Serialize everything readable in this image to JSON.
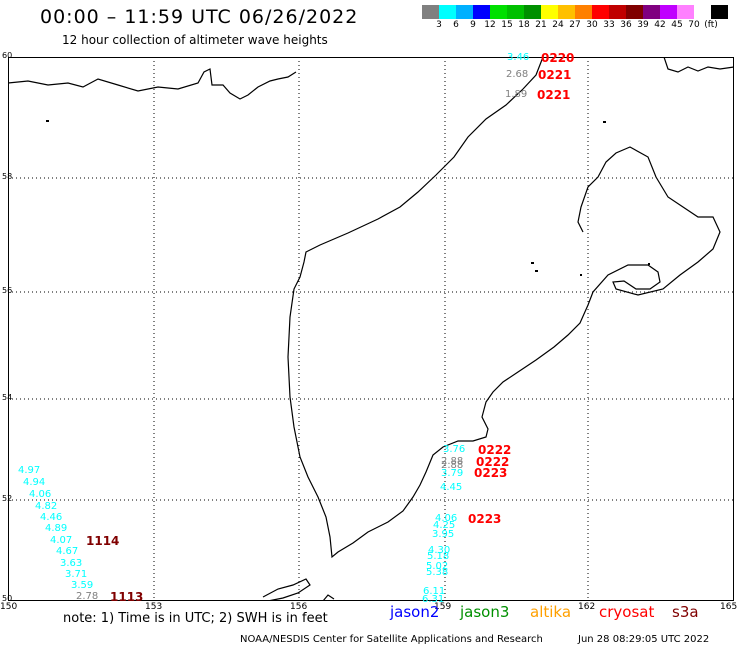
{
  "header": {
    "title": "00:00 – 11:59 UTC 06/26/2022",
    "subtitle": "12 hour collection of altimeter wave heights"
  },
  "color_scale": {
    "colors": [
      "#808080",
      "#00ffff",
      "#00b0ff",
      "#0000ff",
      "#00e000",
      "#00c000",
      "#009000",
      "#ffff00",
      "#ffc000",
      "#ff8000",
      "#ff0000",
      "#c00000",
      "#800000",
      "#800080",
      "#c000ff",
      "#ff80ff",
      "#ffffff",
      "#000000"
    ],
    "labels": [
      "3",
      "6",
      "9",
      "12",
      "15",
      "18",
      "21",
      "24",
      "27",
      "30",
      "33",
      "36",
      "39",
      "42",
      "45",
      "70"
    ],
    "unit": "(ft)"
  },
  "map": {
    "lat_labels": [
      "60",
      "58",
      "56",
      "54",
      "52",
      "50"
    ],
    "lon_labels": [
      "150",
      "153",
      "156",
      "159",
      "162",
      "165"
    ]
  },
  "observations": [
    {
      "text": "3.46",
      "color": "#00ffff"
    },
    {
      "text": "2.68",
      "color": "#808080"
    },
    {
      "text": "1.89",
      "color": "#808080"
    },
    {
      "text": "3.76",
      "color": "#00ffff"
    },
    {
      "text": "2.88",
      "color": "#808080"
    },
    {
      "text": "2.88",
      "color": "#808080"
    },
    {
      "text": "3.79",
      "color": "#00ffff"
    },
    {
      "text": "4.45",
      "color": "#00ffff"
    },
    {
      "text": "4.06",
      "color": "#00ffff"
    },
    {
      "text": "4.25",
      "color": "#00ffff"
    },
    {
      "text": "3.95",
      "color": "#00ffff"
    },
    {
      "text": "4.30",
      "color": "#00ffff"
    },
    {
      "text": "5.18",
      "color": "#00ffff"
    },
    {
      "text": "5.02",
      "color": "#00ffff"
    },
    {
      "text": "5.38",
      "color": "#00ffff"
    },
    {
      "text": "6.11",
      "color": "#00ffff"
    },
    {
      "text": "6.31",
      "color": "#00ffff"
    },
    {
      "text": "4.97",
      "color": "#00ffff"
    },
    {
      "text": "4.94",
      "color": "#00ffff"
    },
    {
      "text": "4.06",
      "color": "#00ffff"
    },
    {
      "text": "4.82",
      "color": "#00ffff"
    },
    {
      "text": "4.46",
      "color": "#00ffff"
    },
    {
      "text": "4.89",
      "color": "#00ffff"
    },
    {
      "text": "4.07",
      "color": "#00ffff"
    },
    {
      "text": "4.67",
      "color": "#00ffff"
    },
    {
      "text": "3.63",
      "color": "#00ffff"
    },
    {
      "text": "3.71",
      "color": "#00ffff"
    },
    {
      "text": "3.59",
      "color": "#00ffff"
    },
    {
      "text": "2.78",
      "color": "#808080"
    }
  ],
  "pass_times": [
    {
      "text": "0220",
      "color": "#ff0000"
    },
    {
      "text": "0221",
      "color": "#ff0000"
    },
    {
      "text": "0221",
      "color": "#ff0000"
    },
    {
      "text": "0222",
      "color": "#ff0000"
    },
    {
      "text": "0222",
      "color": "#ff0000"
    },
    {
      "text": "0223",
      "color": "#ff0000"
    },
    {
      "text": "0223",
      "color": "#ff0000"
    },
    {
      "text": "1114",
      "color": "#800000"
    },
    {
      "text": "1113",
      "color": "#800000"
    }
  ],
  "legend": {
    "jason2": {
      "label": "jason2",
      "color": "#0000ff"
    },
    "jason3": {
      "label": "jason3",
      "color": "#009000"
    },
    "altika": {
      "label": "altika",
      "color": "#ffa000"
    },
    "cryosat": {
      "label": "cryosat",
      "color": "#ff0000"
    },
    "s3a": {
      "label": "s3a",
      "color": "#800000"
    }
  },
  "note": "note:  1) Time is in UTC;  2) SWH is in feet",
  "footer": {
    "credit": "NOAA/NESDIS Center for Satellite Applications and Research",
    "timestamp": "Jun 28 08:29:05 UTC 2022"
  }
}
